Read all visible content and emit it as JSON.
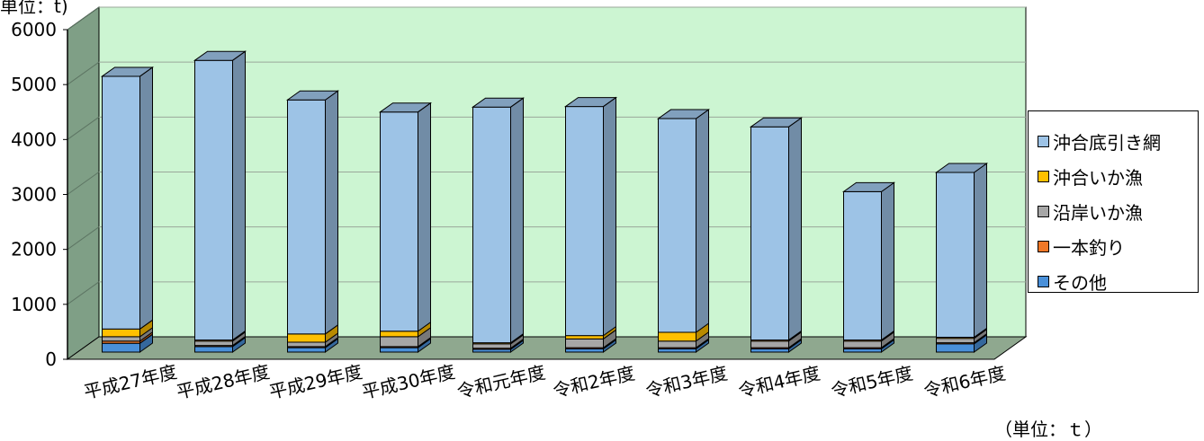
{
  "chart_data": {
    "type": "bar",
    "stacked": true,
    "three_d": true,
    "unit_label": "単位：t)",
    "unit_note": "（単位：ｔ）",
    "categories": [
      "平成27年度",
      "平成28年度",
      "平成29年度",
      "平成30年度",
      "令和元年度",
      "令和2年度",
      "令和3年度",
      "令和4年度",
      "令和5年度",
      "令和6年度"
    ],
    "series": [
      {
        "name": "その他",
        "color": "#4a90d9",
        "values": [
          160,
          100,
          80,
          80,
          50,
          60,
          60,
          60,
          60,
          150
        ]
      },
      {
        "name": "一本釣り",
        "color": "#f07828",
        "values": [
          40,
          20,
          20,
          20,
          20,
          20,
          20,
          20,
          20,
          20
        ]
      },
      {
        "name": "沿岸いか漁",
        "color": "#a6a6a6",
        "values": [
          80,
          80,
          80,
          180,
          80,
          160,
          120,
          120,
          120,
          80
        ]
      },
      {
        "name": "沖合いか漁",
        "color": "#ffc000",
        "values": [
          140,
          20,
          150,
          100,
          20,
          60,
          160,
          20,
          20,
          20
        ]
      },
      {
        "name": "沖合底引き網",
        "color": "#9dc3e6",
        "values": [
          4600,
          5090,
          4260,
          3990,
          4290,
          4170,
          3890,
          3880,
          2700,
          3000
        ]
      }
    ],
    "legend_order": [
      "沖合底引き網",
      "沖合いか漁",
      "沿岸いか漁",
      "一本釣り",
      "その他"
    ],
    "ylim": [
      0,
      6000
    ],
    "yticks": [
      0,
      1000,
      2000,
      3000,
      4000,
      5000,
      6000
    ],
    "grid": true,
    "legend_position": "right",
    "plot_background": "#ccf5d2",
    "floor_color": "#8fa88f",
    "side_wall_color": "#7f9f86"
  }
}
